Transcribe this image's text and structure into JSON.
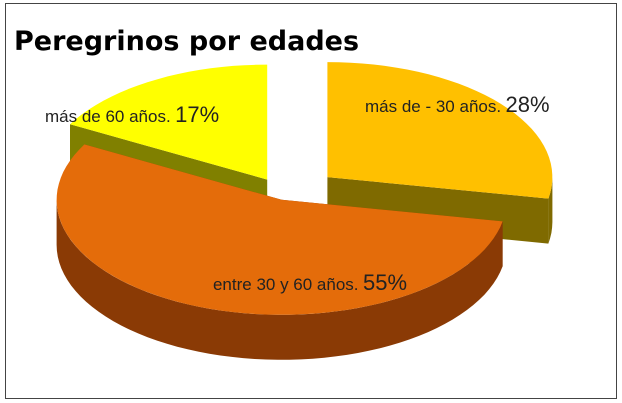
{
  "chart_data": {
    "type": "pie",
    "title": "Peregrinos por edades",
    "categories": [
      "más de - 30 años.",
      "entre 30 y 60 años.",
      "más de 60 años."
    ],
    "values": [
      28,
      55,
      17
    ],
    "value_labels": [
      "28%",
      "55%",
      "17%"
    ],
    "colors": [
      "#FFC000",
      "#E46C0A",
      "#FFFF00"
    ]
  }
}
